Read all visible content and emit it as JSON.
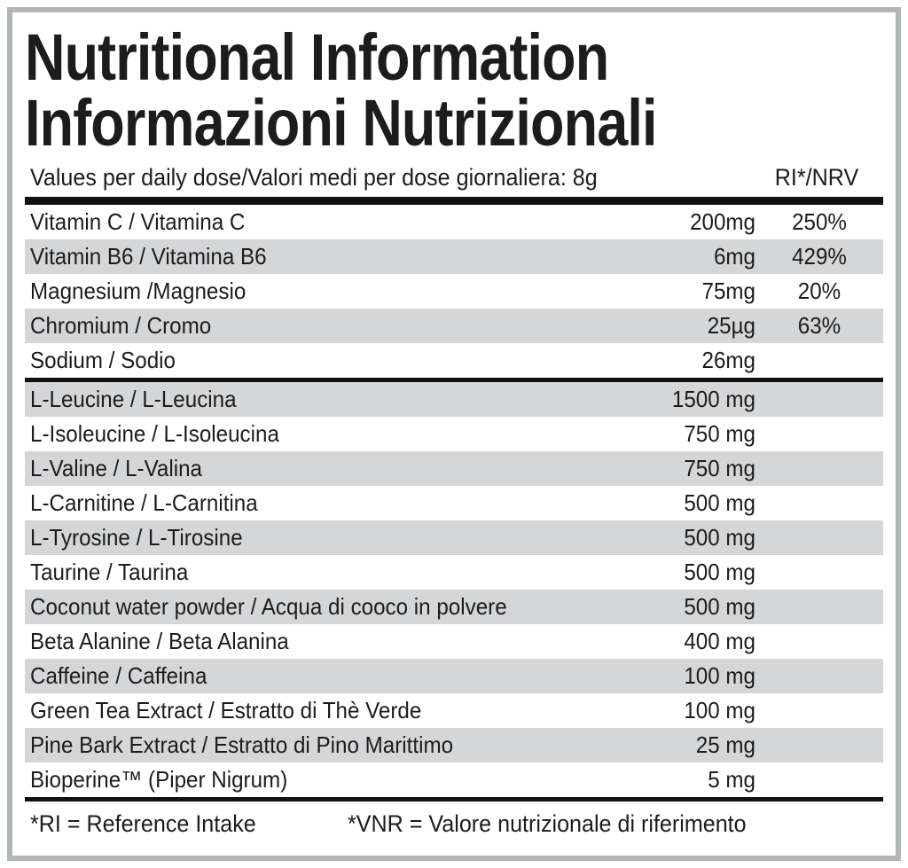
{
  "label": {
    "title_line1": "Nutritional Information",
    "title_line2": "Informazioni Nutrizionali",
    "header": {
      "dose_info": "Values per daily dose/Valori medi per dose giornaliera: 8g",
      "ri_column": "RI*/NRV"
    },
    "sections": [
      {
        "rows": [
          {
            "name": "Vitamin C / Vitamina C",
            "amount": "200mg",
            "ri": "250%"
          },
          {
            "name": "Vitamin B6 / Vitamina B6",
            "amount": "6mg",
            "ri": "429%"
          },
          {
            "name": "Magnesium /Magnesio",
            "amount": "75mg",
            "ri": "20%"
          },
          {
            "name": "Chromium / Cromo",
            "amount": "25µg",
            "ri": "63%"
          },
          {
            "name": "Sodium / Sodio",
            "amount": "26mg",
            "ri": ""
          }
        ]
      },
      {
        "rows": [
          {
            "name": "L-Leucine / L-Leucina",
            "amount": "1500 mg",
            "ri": ""
          },
          {
            "name": "L-Isoleucine / L-Isoleucina",
            "amount": "750 mg",
            "ri": ""
          },
          {
            "name": "L-Valine / L-Valina",
            "amount": "750 mg",
            "ri": ""
          },
          {
            "name": "L-Carnitine / L-Carnitina",
            "amount": "500 mg",
            "ri": ""
          },
          {
            "name": "L-Tyrosine / L-Tirosine",
            "amount": "500 mg",
            "ri": ""
          },
          {
            "name": "Taurine / Taurina",
            "amount": "500 mg",
            "ri": ""
          },
          {
            "name": "Coconut water powder / Acqua di cooco in polvere",
            "amount": "500 mg",
            "ri": ""
          },
          {
            "name": "Beta Alanine / Beta Alanina",
            "amount": "400 mg",
            "ri": ""
          },
          {
            "name": "Caffeine / Caffeina",
            "amount": "100 mg",
            "ri": ""
          },
          {
            "name": "Green Tea Extract / Estratto di Thè Verde",
            "amount": "100 mg",
            "ri": ""
          },
          {
            "name": "Pine Bark Extract / Estratto di Pino Marittimo",
            "amount": "25 mg",
            "ri": ""
          },
          {
            "name": "Bioperine™ (Piper Nigrum)",
            "amount": "5 mg",
            "ri": ""
          }
        ]
      }
    ],
    "footnotes": {
      "ri": "*RI = Reference Intake",
      "vnr": "*VNR = Valore nutrizionale di riferimento"
    },
    "colors": {
      "row_alt_gray": "#d5d6d8",
      "frame_border": "#b0b5b8",
      "divider_black": "#111111",
      "text": "#1c1c1c"
    }
  }
}
